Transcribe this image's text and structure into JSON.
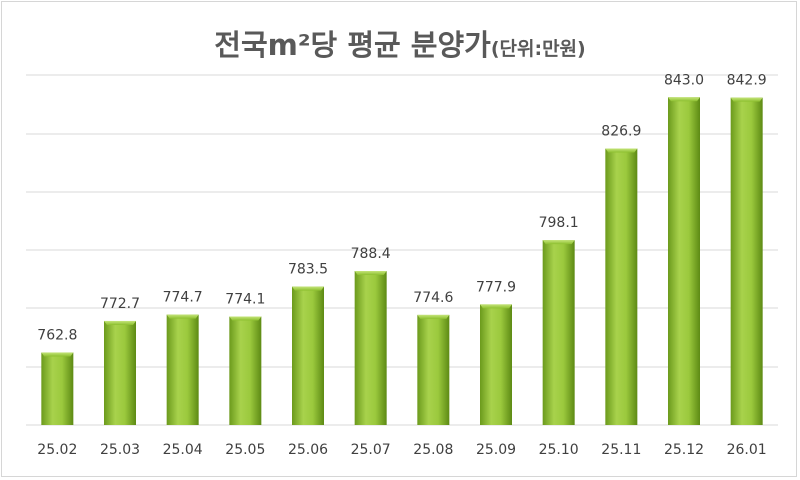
{
  "chart_data": {
    "type": "bar",
    "title": "전국m²당 평균 분양가",
    "subtitle": "(단위:만원)",
    "categories": [
      "25.02",
      "25.03",
      "25.04",
      "25.05",
      "25.06",
      "25.07",
      "25.08",
      "25.09",
      "25.10",
      "25.11",
      "25.12",
      "26.01"
    ],
    "values": [
      762.8,
      772.7,
      774.7,
      774.1,
      783.5,
      788.4,
      774.6,
      777.9,
      798.1,
      826.9,
      843.0,
      842.9
    ],
    "data_labels": [
      "762.8",
      "772.7",
      "774.7",
      "774.1",
      "783.5",
      "788.4",
      "774.6",
      "777.9",
      "798.1",
      "826.9",
      "843.0",
      "842.9"
    ],
    "ylim": [
      740,
      850
    ],
    "grid": true,
    "bar_color": "#8cbf2e"
  }
}
